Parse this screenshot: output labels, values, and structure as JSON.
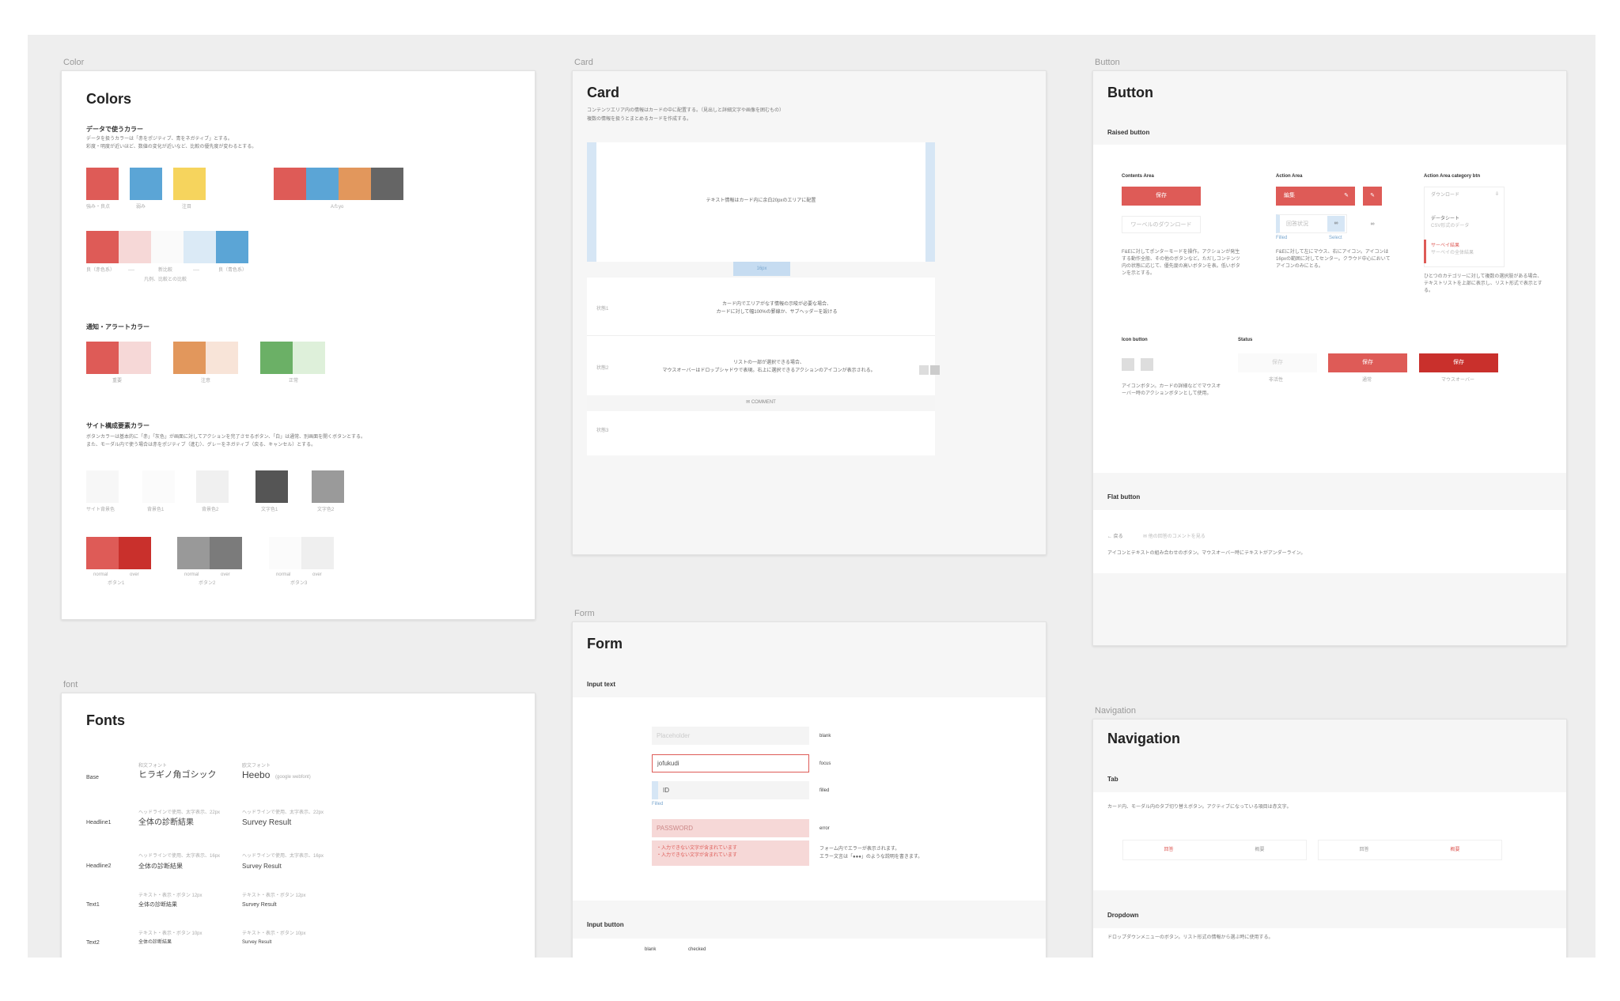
{
  "colors_frame": {
    "label": "Color",
    "title": "Colors",
    "data_section": {
      "heading": "データで使うカラー",
      "desc1": "データを扱うカラーは「赤をポジティブ、青をネガティブ」とする。",
      "desc2": "彩度・明度が近いほど、数値の変化が近いなど、比較の優先度が変わるとする。",
      "row1": [
        {
          "color": "#de5b57"
        },
        {
          "color": "#5ba5d6"
        },
        {
          "color": "#f6d45d"
        }
      ],
      "row1_caption1": "強み・良点",
      "row1_caption2": "弱み",
      "row1_caption3": "注目",
      "group_colors": [
        "#de5b57",
        "#5ba5d6",
        "#e2975c",
        "#656565"
      ],
      "group_caption": "Aたyo",
      "gradient": [
        "#de5b57",
        "#f6d8d7",
        "#fafafa",
        "#dbeaf6",
        "#5ba5d6"
      ],
      "gradient_captions": [
        "良（赤色系）",
        "----",
        "新比較",
        "----",
        "良（青色系）"
      ],
      "gradient_sub": "凡例、比較との比較"
    },
    "alert_section": {
      "heading": "通知・アラートカラー",
      "pairs": [
        {
          "dark": "#de5b57",
          "light": "#f6d8d7",
          "caption": "重要"
        },
        {
          "dark": "#e2975c",
          "light": "#f8e4d8",
          "caption": "注意"
        },
        {
          "dark": "#6bb066",
          "light": "#def0da",
          "caption": "正常"
        }
      ]
    },
    "site_section": {
      "heading": "サイト構成要素カラー",
      "desc1": "ボタンカラーは基本的に「赤」「灰色」が画面に対してアクションを完了させるボタン、「白」は通常、別画面を開くボタンとする。",
      "desc2": "また、モーダル内で使う場合は赤をポジティブ（進む）、グレーをネガティブ（戻る、キャンセル）とする。",
      "bg_swatches": [
        {
          "color": "#f7f7f7",
          "caption": "サイト背景色"
        },
        {
          "color": "#fbfbfb",
          "caption": "背景色1"
        },
        {
          "color": "#f0f0f0",
          "caption": "背景色2"
        },
        {
          "color": "#555555",
          "caption": "文字色1"
        },
        {
          "color": "#9a9a9a",
          "caption": "文字色2"
        }
      ],
      "button_sets": [
        {
          "normal": "#de5b57",
          "over": "#c9302c",
          "caption": "ボタン1",
          "n": "normal",
          "o": "over"
        },
        {
          "normal": "#999999",
          "over": "#7b7b7b",
          "caption": "ボタン2",
          "n": "normal",
          "o": "over"
        },
        {
          "normal": "#fbfbfb",
          "over": "#efefef",
          "caption": "ボタン3",
          "n": "normal",
          "o": "over"
        }
      ]
    }
  },
  "fonts_frame": {
    "label": "font",
    "title": "Fonts",
    "rows": [
      {
        "name": "Base",
        "jp_meta": "和文フォント",
        "jp": "ヒラギノ角ゴシック",
        "en_meta": "欧文フォント",
        "en": "Heebo",
        "en_note": "(google webfont)"
      },
      {
        "name": "Headline1",
        "jp_meta": "ヘッドラインで使用、太字表示、22px",
        "jp": "全体の診断結果",
        "en_meta": "ヘッドラインで使用、太字表示、22px",
        "en": "Survey Result"
      },
      {
        "name": "Headline2",
        "jp_meta": "ヘッドラインで使用、太字表示、16px",
        "jp": "全体の診断結果",
        "en_meta": "ヘッドラインで使用、太字表示、16px",
        "en": "Survey Result"
      },
      {
        "name": "Text1",
        "jp_meta": "テキスト・表示・ボタン 12px",
        "jp": "全体の診断結果",
        "en_meta": "テキスト・表示・ボタン 12px",
        "en": "Survey Result"
      },
      {
        "name": "Text2",
        "jp_meta": "テキスト・表示・ボタン 10px",
        "jp": "全体の診断結果",
        "en_meta": "テキスト・表示・ボタン 10px",
        "en": "Survey Result"
      }
    ]
  },
  "card_frame": {
    "label": "Card",
    "title": "Card",
    "desc1": "コンテンツエリア内の情報はカードの中に配置する。（見出しと詳細文字や画像を囲むもの）",
    "desc2": "複数の情報を扱うとまとめるカードを作成する。",
    "card_text": "テキスト情報はカード内に余白20pxのエリアに配置",
    "margin_label": "16px",
    "rows": [
      {
        "label": "状態1",
        "line1": "カード内でエリアがなす情報の示唆が必要な場合、",
        "line2": "カードに対して幅100%の罫線か、サブヘッダーを設ける"
      },
      {
        "label": "状態2",
        "line1": "リストの一部が選択できる場合、",
        "line2": "マウスオーバーはドロップシャドウで表現。右上に選択できるアクションのアイコンが表示される。"
      },
      {
        "label": "状態3",
        "line1": "",
        "line2": ""
      }
    ],
    "comment_label": "COMMENT"
  },
  "form_frame": {
    "label": "Form",
    "title": "Form",
    "input_text_heading": "Input text",
    "fields": [
      {
        "value": "Placeholder",
        "state": "blank"
      },
      {
        "value": "jofukudi",
        "state": "focus"
      },
      {
        "value": "ID",
        "state": "filled"
      },
      {
        "value": "PASSWORD",
        "state": "error"
      }
    ],
    "error_lines": [
      "・入力できない文字が含まれています",
      "・入力できない文字が含まれています"
    ],
    "error_note1": "フォーム内でエラーが表示されます。",
    "error_note2": "エラー文言は「●●●」のような説明を書きます。",
    "filled_caption": "Filled",
    "input_button_heading": "Input button",
    "input_button_cols": [
      "blank",
      "checked"
    ]
  },
  "button_frame": {
    "label": "Button",
    "title": "Button",
    "raised_heading": "Raised button",
    "contents_area": {
      "heading": "Contents Area",
      "primary": "保存",
      "secondary": "ワーベルのダウンロード",
      "desc": "F&Eに対してポンターモードを操作。アクションが発生する動作全般、その他のボタンなど。ただしコンテンツ内の状態に応じて、優先度の高いボタンを表。低いボタンを示とする。"
    },
    "action_area": {
      "heading": "Action Area",
      "primary": "編集",
      "secondary": "回答状況",
      "desc": "F&Eに対して左にマウス、右にアイコン。アイコンは16pxの範囲に対してセンター。クラウド中心においてアイコンのみにとる。",
      "captions": [
        "Filled",
        "Select"
      ]
    },
    "category_area": {
      "heading": "Action Area category btn",
      "items": [
        "ダウンロード",
        "データシート",
        "サーベイ結果"
      ],
      "subs": [
        "CSV形式のデータ",
        "サーベイの全体結果"
      ],
      "desc": "ひとつのカテゴリーに対して複数の選択肢がある場合、テキストリストを上部に表示し、リスト形式で表示とする。"
    },
    "icon_heading": "Icon button",
    "icon_desc": "アイコンボタン。カードの詳細などでマウスオーバー時のアクションボタンとして使用。",
    "status_heading": "Status",
    "status_buttons": [
      {
        "label": "保存",
        "caption": "非活性"
      },
      {
        "label": "保存",
        "caption": "通常"
      },
      {
        "label": "保存",
        "caption": "マウスオーバー"
      }
    ],
    "flat_heading": "Flat button",
    "flat_items": [
      "戻る",
      "他の回答のコメントを見る"
    ],
    "flat_desc": "アイコンとテキストの組み合わせのボタン。マウスオーバー時にテキストがアンダーライン。"
  },
  "nav_frame": {
    "label": "Navigation",
    "title": "Navigation",
    "tab_heading": "Tab",
    "tab_desc": "カード内、モーダル内のタブ切り替えボタン。アクティブになっている項目は赤文字。",
    "tabs": [
      {
        "label": "回答",
        "active": true
      },
      {
        "label": "概要",
        "active": false
      },
      {
        "label": "回答",
        "active": false
      },
      {
        "label": "概要",
        "active": true
      }
    ],
    "dropdown_heading": "Dropdown",
    "dropdown_desc": "ドロップダウンメニューのボタン。リスト形式の情報から選ぶ時に使用する。"
  },
  "theme": {
    "accent": "#de5b57",
    "accent_dark": "#c9302c",
    "canvas": "#eeeeee"
  }
}
